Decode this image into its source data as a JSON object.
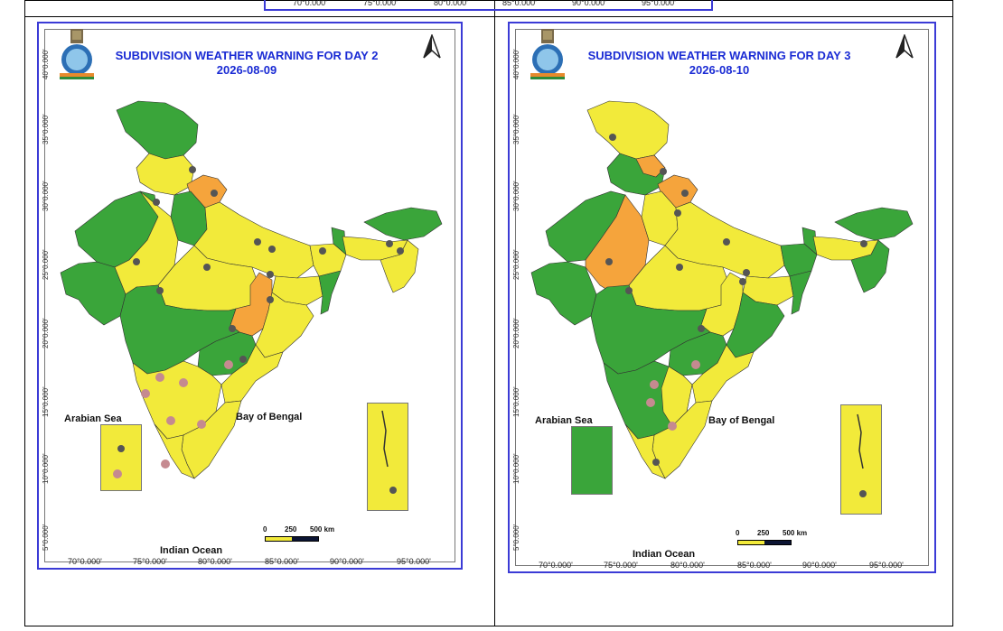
{
  "previous_map_axis": {
    "lon_ticks": [
      "70°0.000'",
      "75°0.000'",
      "80°0.000'",
      "85°0.000'",
      "90°0.000'",
      "95°0.000'"
    ]
  },
  "colors": {
    "green": "#3aa53a",
    "yellow": "#f2ea3a",
    "orange": "#f5a43c",
    "frame": "#3b3bd6",
    "title": "#1a2bd4"
  },
  "maps": [
    {
      "title": "SUBDIVISION WEATHER WARNING FOR DAY 2",
      "date": "2026-08-09",
      "lat_ticks": [
        "40°0.000'",
        "35°0.000'",
        "30°0.000'",
        "25°0.000'",
        "20°0.000'",
        "15°0.000'",
        "10°0.000'",
        "5°0.000'"
      ],
      "lon_ticks": [
        "70°0.000'",
        "75°0.000'",
        "80°0.000'",
        "85°0.000'",
        "90°0.000'",
        "95°0.000'"
      ],
      "arabian_sea": "Arabian Sea",
      "bay_of_bengal": "Bay of Bengal",
      "indian_ocean": "Indian Ocean",
      "scale": {
        "zero": "0",
        "mid": "250",
        "end": "500 km"
      },
      "lakshadweep_level": "yellow",
      "andaman_level": "yellow"
    },
    {
      "title": "SUBDIVISION WEATHER WARNING FOR DAY 3",
      "date": "2026-08-10",
      "lat_ticks": [
        "40°0.000'",
        "35°0.000'",
        "30°0.000'",
        "25°0.000'",
        "20°0.000'",
        "15°0.000'",
        "10°0.000'",
        "5°0.000'"
      ],
      "lon_ticks": [
        "70°0.000'",
        "75°0.000'",
        "80°0.000'",
        "85°0.000'",
        "90°0.000'",
        "95°0.000'"
      ],
      "arabian_sea": "Arabian Sea",
      "bay_of_bengal": "Bay of Bengal",
      "indian_ocean": "Indian Ocean",
      "scale": {
        "zero": "0",
        "mid": "250",
        "end": "500 km"
      },
      "lakshadweep_level": "green",
      "andaman_level": "yellow"
    }
  ]
}
